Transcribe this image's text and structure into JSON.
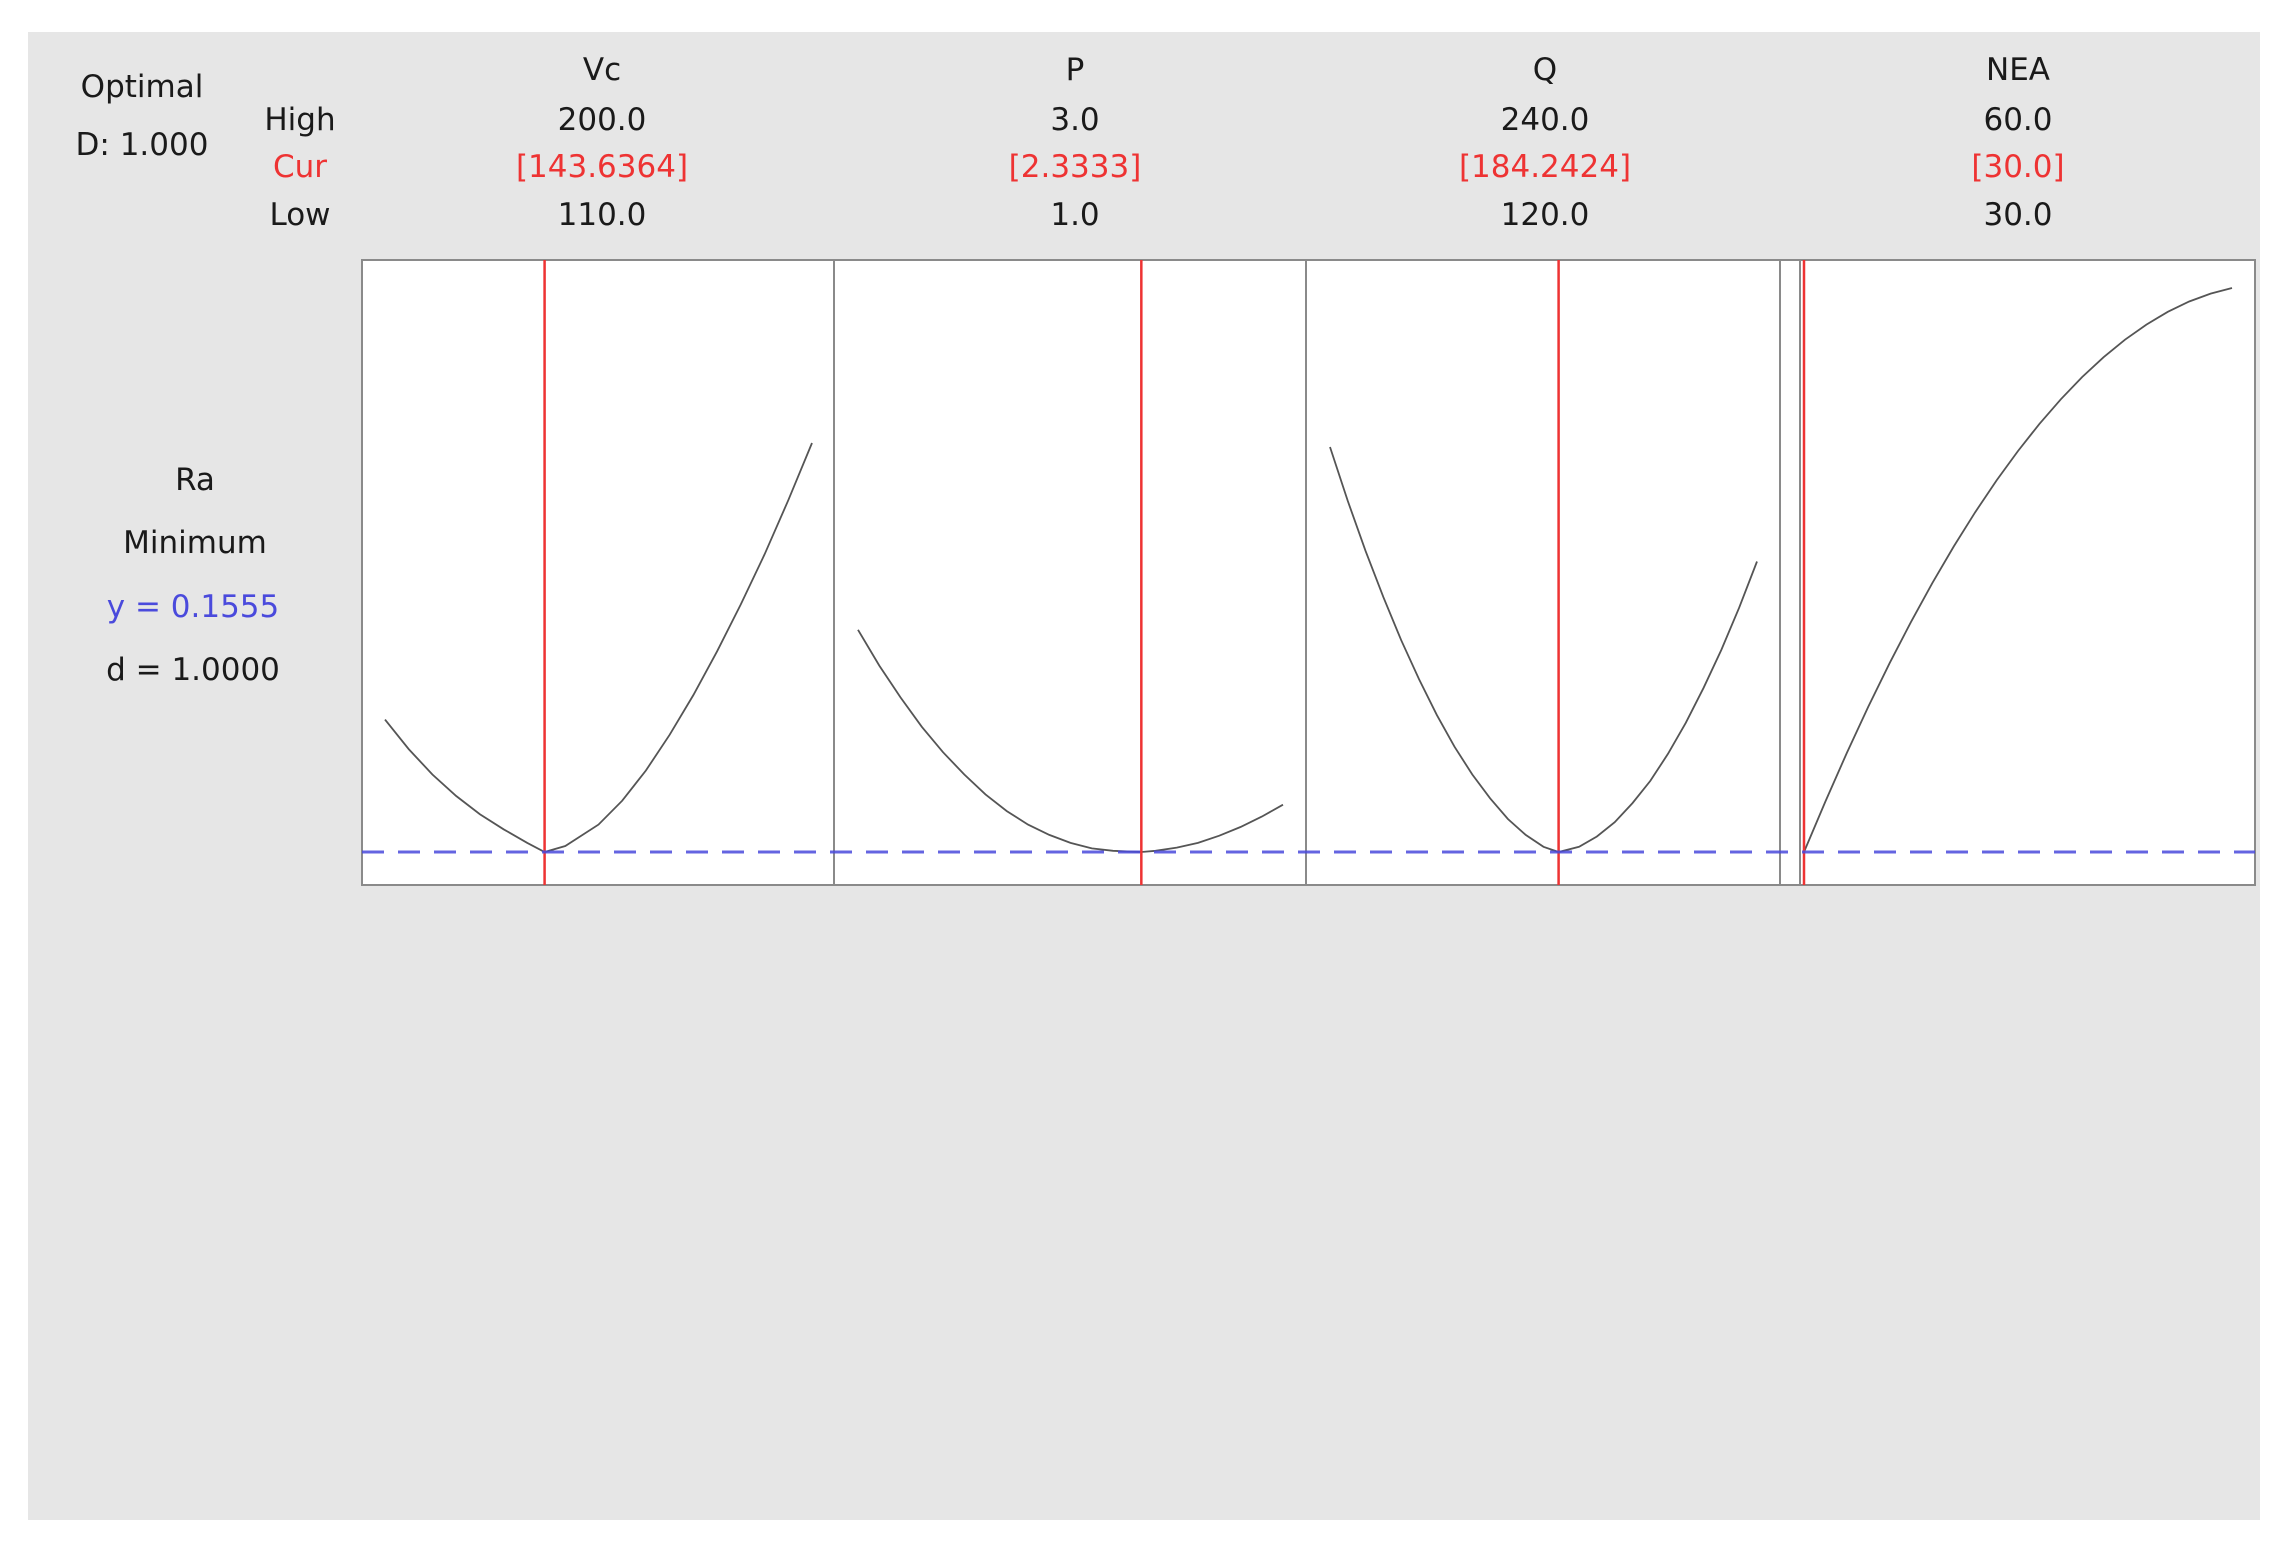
{
  "header": {
    "optimal_label": "Optimal",
    "d_label": "D: 1.000",
    "high_label": "High",
    "cur_label": "Cur",
    "low_label": "Low"
  },
  "response": {
    "name": "Ra",
    "goal": "Minimum",
    "y_text": "y = 0.1555",
    "d_text": "d = 1.0000"
  },
  "colors": {
    "background": "#e6e6e6",
    "panel": "#ffffff",
    "current": "#ee3333",
    "optimum_y": "#4a4adc",
    "curve": "#555555",
    "text": "#1a1a1a"
  },
  "chart_data": {
    "type": "line",
    "title": "",
    "y_optimum": 0.1555,
    "factors": [
      {
        "name": "Vc",
        "high": 200.0,
        "low": 110.0,
        "cur": 143.6364,
        "high_text": "200.0",
        "low_text": "110.0",
        "cur_text": "[143.6364]",
        "x": [
          110,
          115,
          120,
          125,
          130,
          135,
          140,
          143.6364,
          148,
          155,
          160,
          165,
          170,
          175,
          180,
          185,
          190,
          195,
          200
        ],
        "y": [
          0.322,
          0.285,
          0.253,
          0.226,
          0.203,
          0.184,
          0.167,
          0.1555,
          0.163,
          0.19,
          0.22,
          0.258,
          0.303,
          0.353,
          0.408,
          0.467,
          0.53,
          0.598,
          0.67
        ]
      },
      {
        "name": "P",
        "high": 3.0,
        "low": 1.0,
        "cur": 2.3333,
        "high_text": "3.0",
        "low_text": "1.0",
        "cur_text": "[2.3333]",
        "x": [
          1.0,
          1.1,
          1.2,
          1.3,
          1.4,
          1.5,
          1.6,
          1.7,
          1.8,
          1.9,
          2.0,
          2.1,
          2.2,
          2.3333,
          2.4,
          2.5,
          2.6,
          2.7,
          2.8,
          2.9,
          3.0
        ],
        "y": [
          0.435,
          0.39,
          0.35,
          0.313,
          0.281,
          0.253,
          0.228,
          0.207,
          0.19,
          0.177,
          0.167,
          0.16,
          0.157,
          0.1555,
          0.157,
          0.161,
          0.167,
          0.176,
          0.187,
          0.2,
          0.215
        ]
      },
      {
        "name": "Q",
        "high": 240.0,
        "low": 120.0,
        "cur": 184.2424,
        "high_text": "240.0",
        "low_text": "120.0",
        "cur_text": "[184.2424]",
        "x": [
          120,
          125,
          130,
          135,
          140,
          145,
          150,
          155,
          160,
          165,
          170,
          175,
          180,
          184.2424,
          190,
          195,
          200,
          205,
          210,
          215,
          220,
          225,
          230,
          235,
          240
        ],
        "y": [
          0.665,
          0.597,
          0.534,
          0.476,
          0.422,
          0.373,
          0.328,
          0.288,
          0.253,
          0.223,
          0.197,
          0.177,
          0.162,
          0.1555,
          0.162,
          0.175,
          0.193,
          0.217,
          0.245,
          0.279,
          0.318,
          0.362,
          0.41,
          0.463,
          0.521
        ]
      },
      {
        "name": "NEA",
        "high": 60.0,
        "low": 30.0,
        "cur": 30.0,
        "high_text": "60.0",
        "low_text": "30.0",
        "cur_text": "[30.0]",
        "x": [
          30,
          31.5,
          33,
          34.5,
          36,
          37.5,
          39,
          40.5,
          42,
          43.5,
          45,
          46.5,
          48,
          49.5,
          51,
          52.5,
          54,
          55.5,
          57,
          58.5,
          60
        ],
        "y": [
          0.1555,
          0.219,
          0.28,
          0.338,
          0.393,
          0.445,
          0.494,
          0.54,
          0.583,
          0.623,
          0.66,
          0.694,
          0.725,
          0.753,
          0.778,
          0.8,
          0.819,
          0.835,
          0.848,
          0.858,
          0.865
        ]
      }
    ]
  }
}
